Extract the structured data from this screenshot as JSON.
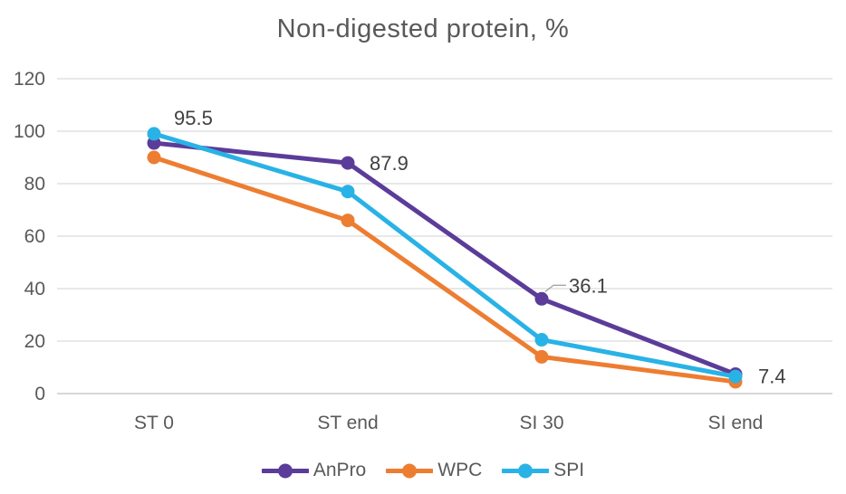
{
  "chart_data": {
    "type": "line",
    "title": "Non-digested protein, %",
    "categories": [
      "ST 0",
      "ST end",
      "SI 30",
      "SI end"
    ],
    "series": [
      {
        "name": "AnPro",
        "color": "#5B3C99",
        "values": [
          95.5,
          87.9,
          36.1,
          7.4
        ],
        "data_labels": [
          "95.5",
          "87.9",
          "36.1",
          "7.4"
        ]
      },
      {
        "name": "WPC",
        "color": "#ED7D31",
        "values": [
          90,
          66,
          14,
          4.5
        ]
      },
      {
        "name": "SPI",
        "color": "#29B2E5",
        "values": [
          99,
          77,
          20.5,
          6.5
        ]
      }
    ],
    "ylim": [
      0,
      120
    ],
    "yticks": [
      0,
      20,
      40,
      60,
      80,
      100,
      120
    ],
    "grid": true,
    "legend_position": "bottom",
    "colors": {
      "title": "#595959",
      "axis_labels": "#595959",
      "data_labels": "#404040",
      "gridline": "#D9D9D9",
      "axis_line": "#BFBFBF",
      "leader_line": "#A6A6A6",
      "background": "#FFFFFF"
    }
  }
}
